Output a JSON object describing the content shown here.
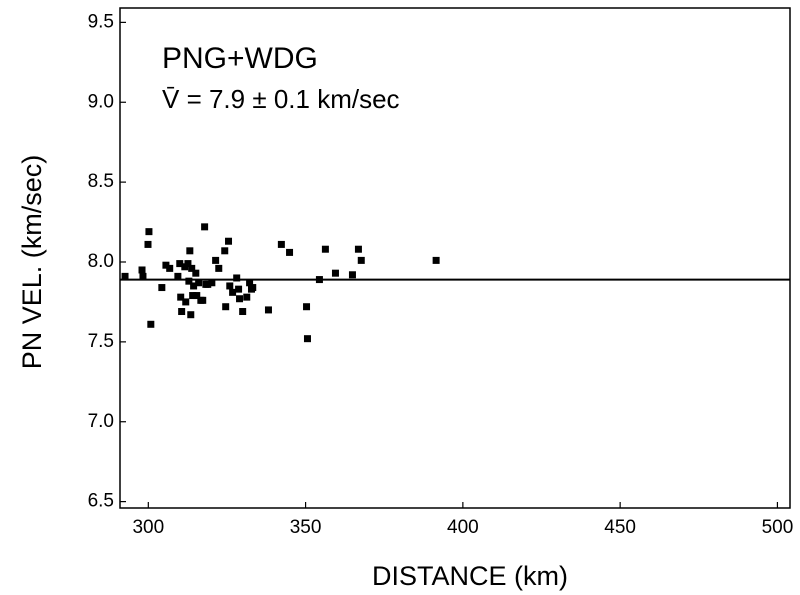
{
  "chart_data": {
    "type": "scatter",
    "annotations": [
      "PNG+WDG",
      "V̄ = 7.9 ± 0.1 km/sec"
    ],
    "x_label": "DISTANCE (km)",
    "y_label": "PN VEL. (km/sec)",
    "xlim": [
      291,
      504
    ],
    "ylim": [
      6.46,
      9.59
    ],
    "xticks": [
      300,
      350,
      400,
      450,
      500
    ],
    "yticks": [
      6.5,
      {
        "value": 7,
        "label": "7.0"
      },
      7.5,
      {
        "value": 8,
        "label": "8.0"
      },
      8.5,
      {
        "value": 9,
        "label": "9.0"
      },
      9.5
    ],
    "mean_line": 7.89,
    "color": "#000000",
    "x": [
      292.6,
      298.0,
      298.3,
      299.9,
      300.2,
      300.8,
      304.3,
      305.6,
      306.8,
      309.4,
      310.0,
      310.3,
      310.6,
      311.6,
      311.9,
      312.6,
      312.9,
      313.2,
      313.5,
      313.8,
      314.1,
      314.4,
      315.1,
      315.4,
      316.0,
      316.7,
      317.3,
      317.9,
      318.3,
      318.9,
      320.2,
      321.4,
      322.4,
      324.3,
      324.6,
      325.5,
      325.9,
      326.8,
      328.1,
      328.7,
      329.0,
      330.0,
      331.3,
      332.2,
      332.8,
      333.2,
      338.2,
      342.3,
      344.9,
      350.3,
      350.6,
      354.4,
      356.3,
      359.5,
      364.9,
      366.8,
      367.7,
      391.5
    ],
    "values": [
      7.91,
      7.95,
      7.91,
      8.11,
      8.19,
      7.61,
      7.84,
      7.98,
      7.96,
      7.91,
      7.99,
      7.78,
      7.69,
      7.97,
      7.75,
      7.99,
      7.88,
      8.07,
      7.67,
      7.96,
      7.79,
      7.85,
      7.93,
      7.79,
      7.87,
      7.76,
      7.76,
      8.22,
      7.86,
      7.86,
      7.87,
      8.01,
      7.96,
      8.07,
      7.72,
      8.13,
      7.85,
      7.81,
      7.9,
      7.83,
      7.77,
      7.69,
      7.78,
      7.87,
      7.83,
      7.84,
      7.7,
      8.11,
      8.06,
      7.72,
      7.52,
      7.89,
      8.08,
      7.93,
      7.92,
      8.08,
      8.01,
      8.01
    ]
  }
}
